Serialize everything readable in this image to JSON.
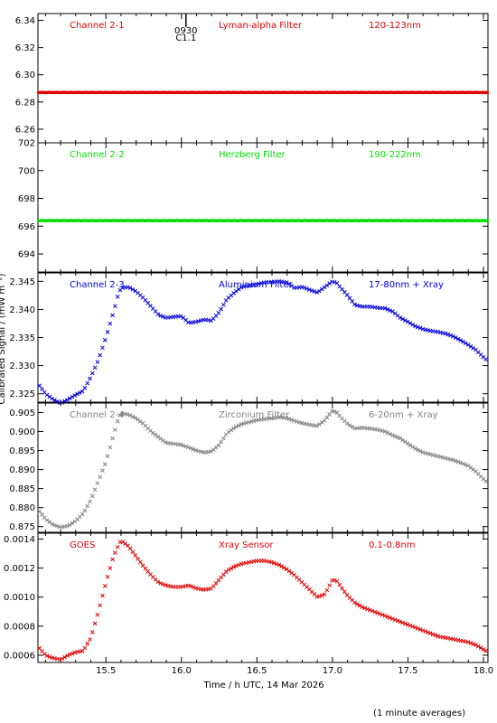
{
  "chart_data": {
    "type": "scatter",
    "xlabel": "Time / h UTC, 14 Mar 2026",
    "ylabel": "Calibrated Signal / (mW m⁻²)",
    "footnote": "(1 minute averages)",
    "xlim": [
      15.05,
      18.03
    ],
    "xticks": [
      15.5,
      16.0,
      16.5,
      17.0,
      17.5,
      18.0
    ],
    "xtick_labels": [
      "15.5",
      "16.0",
      "16.5",
      "17.0",
      "17.5",
      "18.0"
    ],
    "flare_marker": {
      "x": 16.03,
      "time": "0930",
      "class": "C1.1"
    },
    "panels": [
      {
        "channel": "Channel 2-1",
        "filter": "Lyman-alpha Filter",
        "band": "120-123nm",
        "color": "#e00000",
        "marker": "dot",
        "ylim": [
          6.25,
          6.345
        ],
        "yticks": [
          6.26,
          6.28,
          6.3,
          6.32,
          6.34
        ],
        "ytick_labels": [
          "6.26",
          "6.28",
          "6.30",
          "6.32",
          "6.34"
        ],
        "series": [
          {
            "x": [
              15.05,
              18.03
            ],
            "y": [
              6.287,
              6.287
            ]
          }
        ]
      },
      {
        "channel": "Channel 2-2",
        "filter": "Herzberg Filter",
        "band": "190-222nm",
        "color": "#00dd00",
        "marker": "dot",
        "ylim": [
          692.7,
          702.0
        ],
        "yticks": [
          694,
          696,
          698,
          700,
          702
        ],
        "ytick_labels": [
          "694",
          "696",
          "698",
          "700",
          "702"
        ],
        "series": [
          {
            "x": [
              15.05,
              18.03
            ],
            "y": [
              696.4,
              696.4
            ]
          }
        ]
      },
      {
        "channel": "Channel 2-3",
        "filter": "Aluminium Filter",
        "band": "17-80nm + Xray",
        "color": "#0000dd",
        "marker": "x",
        "ylim": [
          2.3235,
          2.3465
        ],
        "yticks": [
          2.325,
          2.33,
          2.335,
          2.34,
          2.345
        ],
        "ytick_labels": [
          "2.325",
          "2.330",
          "2.335",
          "2.340",
          "2.345"
        ],
        "series": [
          {
            "x": [
              15.05,
              15.1,
              15.15,
              15.2,
              15.25,
              15.3,
              15.35,
              15.4,
              15.45,
              15.5,
              15.55,
              15.58,
              15.6,
              15.65,
              15.7,
              15.75,
              15.8,
              15.85,
              15.9,
              15.95,
              16.0,
              16.05,
              16.1,
              16.15,
              16.2,
              16.25,
              16.3,
              16.35,
              16.4,
              16.45,
              16.5,
              16.55,
              16.6,
              16.65,
              16.7,
              16.75,
              16.8,
              16.85,
              16.9,
              16.95,
              17.0,
              17.03,
              17.05,
              17.1,
              17.15,
              17.2,
              17.25,
              17.3,
              17.35,
              17.4,
              17.45,
              17.5,
              17.55,
              17.6,
              17.65,
              17.7,
              17.75,
              17.8,
              17.85,
              17.9,
              17.95,
              18.0,
              18.03
            ],
            "y": [
              2.3268,
              2.325,
              2.324,
              2.3233,
              2.324,
              2.3248,
              2.3255,
              2.328,
              2.331,
              2.335,
              2.3395,
              2.3425,
              2.3438,
              2.344,
              2.3432,
              2.342,
              2.3405,
              2.339,
              2.3385,
              2.3387,
              2.3388,
              2.3376,
              2.3378,
              2.3382,
              2.338,
              2.3395,
              2.3418,
              2.343,
              2.344,
              2.3442,
              2.3445,
              2.3448,
              2.3449,
              2.345,
              2.3448,
              2.3438,
              2.344,
              2.3435,
              2.343,
              2.344,
              2.345,
              2.3447,
              2.344,
              2.3425,
              2.3408,
              2.3405,
              2.3405,
              2.3403,
              2.3402,
              2.3396,
              2.3385,
              2.3378,
              2.337,
              2.3365,
              2.3362,
              2.336,
              2.3357,
              2.3352,
              2.3345,
              2.3337,
              2.3328,
              2.3315,
              2.3308
            ]
          }
        ]
      },
      {
        "channel": "Channel 2-4",
        "filter": "Zirconium Filter",
        "band": "6-20nm + Xray",
        "color": "#808080",
        "marker": "x",
        "ylim": [
          0.8735,
          0.9075
        ],
        "yticks": [
          0.875,
          0.88,
          0.885,
          0.89,
          0.895,
          0.9,
          0.905
        ],
        "ytick_labels": [
          "0.875",
          "0.880",
          "0.885",
          "0.890",
          "0.895",
          "0.900",
          "0.905"
        ],
        "series": [
          {
            "x": [
              15.05,
              15.1,
              15.15,
              15.2,
              15.25,
              15.3,
              15.35,
              15.4,
              15.45,
              15.5,
              15.55,
              15.58,
              15.6,
              15.65,
              15.7,
              15.75,
              15.8,
              15.85,
              15.9,
              15.95,
              16.0,
              16.05,
              16.1,
              16.15,
              16.2,
              16.25,
              16.3,
              16.35,
              16.4,
              16.45,
              16.5,
              16.55,
              16.6,
              16.65,
              16.7,
              16.75,
              16.8,
              16.85,
              16.9,
              16.95,
              17.0,
              17.03,
              17.05,
              17.1,
              17.15,
              17.2,
              17.25,
              17.3,
              17.35,
              17.4,
              17.45,
              17.5,
              17.55,
              17.6,
              17.65,
              17.7,
              17.75,
              17.8,
              17.85,
              17.9,
              17.95,
              18.0,
              18.03
            ],
            "y": [
              0.8795,
              0.877,
              0.8755,
              0.8748,
              0.8752,
              0.8765,
              0.8785,
              0.882,
              0.887,
              0.892,
              0.899,
              0.903,
              0.9048,
              0.9045,
              0.9035,
              0.902,
              0.9,
              0.8985,
              0.897,
              0.8968,
              0.8965,
              0.8958,
              0.895,
              0.8945,
              0.8948,
              0.8965,
              0.8995,
              0.901,
              0.902,
              0.9025,
              0.903,
              0.9033,
              0.9035,
              0.9038,
              0.9035,
              0.9028,
              0.9022,
              0.9018,
              0.9015,
              0.903,
              0.9055,
              0.905,
              0.904,
              0.902,
              0.9008,
              0.901,
              0.9008,
              0.9005,
              0.9,
              0.899,
              0.8982,
              0.8968,
              0.8955,
              0.8945,
              0.894,
              0.8935,
              0.893,
              0.8925,
              0.8918,
              0.891,
              0.8895,
              0.8875,
              0.8865
            ]
          }
        ]
      },
      {
        "channel": "GOES",
        "filter": "Xray Sensor",
        "band": "0.1-0.8nm",
        "color": "#e00000",
        "marker": "x",
        "ylim": [
          0.00055,
          0.00144
        ],
        "yticks": [
          0.0006,
          0.0008,
          0.001,
          0.0012,
          0.0014
        ],
        "ytick_labels": [
          "0.0006",
          "0.0008",
          "0.0010",
          "0.0012",
          "0.0014"
        ],
        "series": [
          {
            "x": [
              15.05,
              15.1,
              15.15,
              15.2,
              15.25,
              15.3,
              15.35,
              15.4,
              15.45,
              15.5,
              15.55,
              15.58,
              15.6,
              15.65,
              15.7,
              15.75,
              15.8,
              15.85,
              15.9,
              15.95,
              16.0,
              16.05,
              16.1,
              16.15,
              16.2,
              16.25,
              16.3,
              16.35,
              16.4,
              16.45,
              16.5,
              16.55,
              16.6,
              16.65,
              16.7,
              16.75,
              16.8,
              16.85,
              16.9,
              16.95,
              17.0,
              17.03,
              17.05,
              17.1,
              17.15,
              17.2,
              17.25,
              17.3,
              17.35,
              17.4,
              17.45,
              17.5,
              17.55,
              17.6,
              17.65,
              17.7,
              17.75,
              17.8,
              17.85,
              17.9,
              17.95,
              18.0,
              18.03
            ],
            "y": [
              0.00066,
              0.0006,
              0.00058,
              0.00057,
              0.0006,
              0.00062,
              0.00063,
              0.00072,
              0.0009,
              0.0011,
              0.00128,
              0.00135,
              0.00139,
              0.00135,
              0.00128,
              0.00121,
              0.00115,
              0.0011,
              0.00108,
              0.00107,
              0.00107,
              0.00108,
              0.00106,
              0.00105,
              0.00106,
              0.00112,
              0.00118,
              0.00121,
              0.00123,
              0.00124,
              0.00125,
              0.00125,
              0.00124,
              0.00122,
              0.00119,
              0.00115,
              0.0011,
              0.00105,
              0.001,
              0.00102,
              0.00112,
              0.00111,
              0.00108,
              0.00101,
              0.00096,
              0.00093,
              0.00091,
              0.00089,
              0.00087,
              0.00085,
              0.00083,
              0.00081,
              0.00079,
              0.00077,
              0.00075,
              0.00073,
              0.00072,
              0.00071,
              0.0007,
              0.00069,
              0.00067,
              0.00064,
              0.00062
            ]
          }
        ]
      }
    ]
  }
}
